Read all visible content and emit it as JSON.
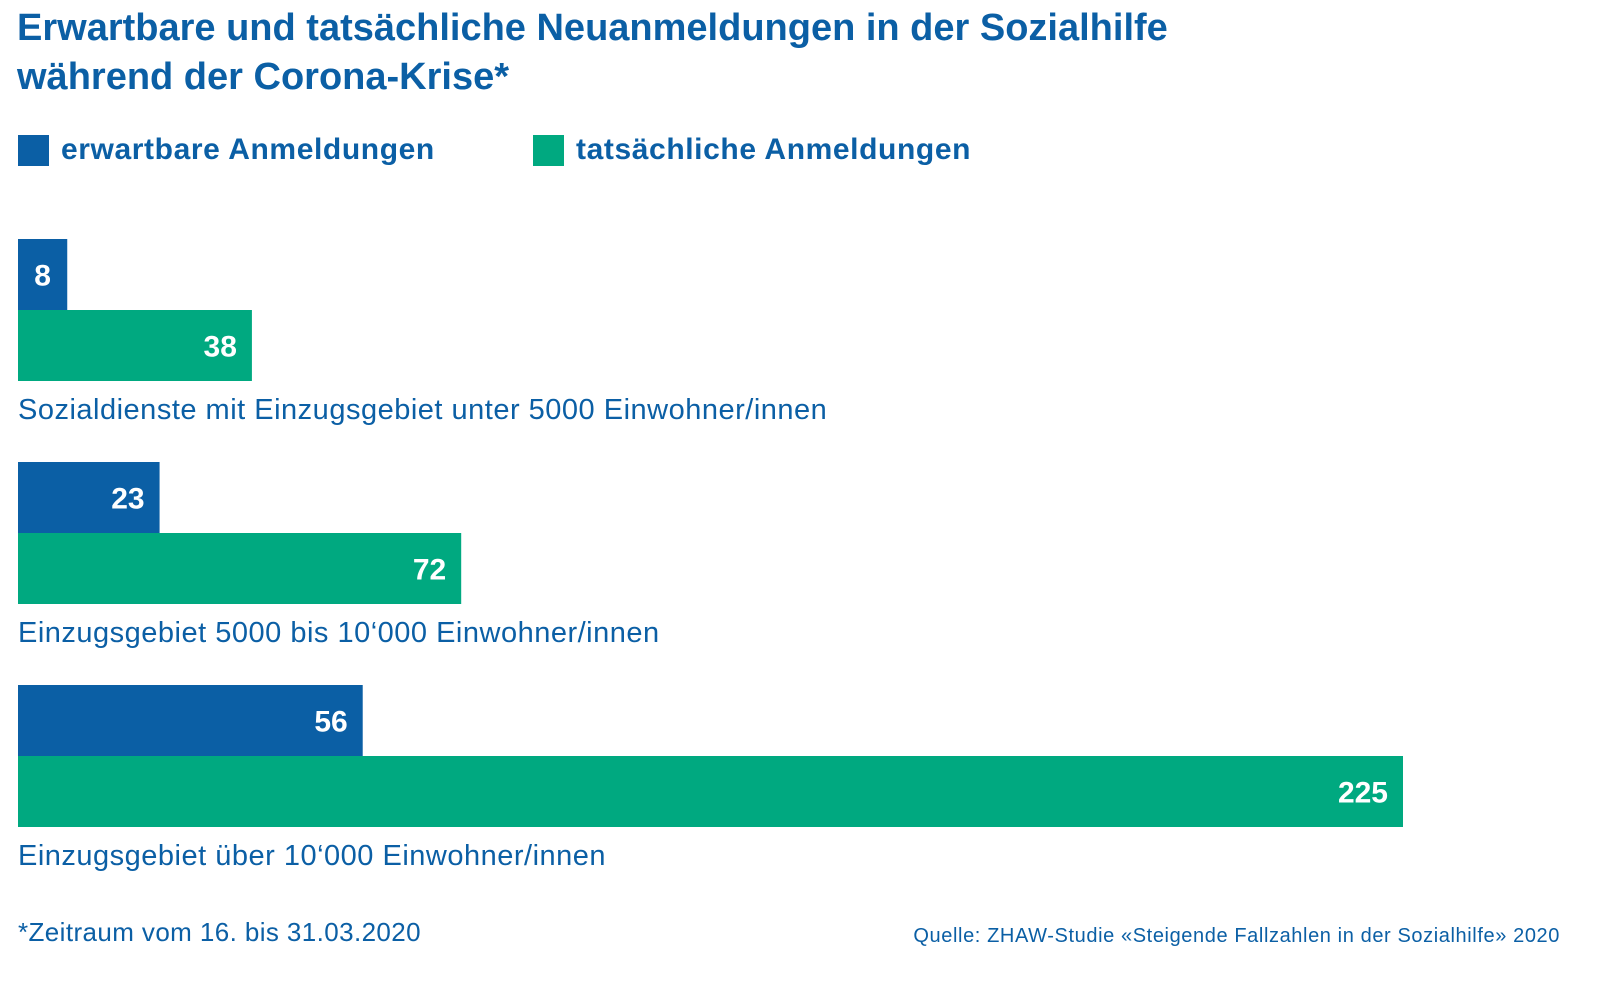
{
  "colors": {
    "text": "#0b5fa5",
    "expected": "#0b5fa5",
    "actual": "#00a980",
    "value_label": "#ffffff"
  },
  "footnote": "*Zeitraum vom 16. bis 31.03.2020",
  "source": "Quelle:  ZHAW-Studie «Steigende Fallzahlen in der Sozialhilfe» 2020",
  "chart_data": {
    "type": "bar",
    "orientation": "horizontal",
    "title_lines": [
      "Erwartbare und tatsächliche Neuanmeldungen in der Sozialhilfe",
      "während der Corona-Krise*"
    ],
    "categories": [
      "Sozialdienste mit Einzugsgebiet unter 5000 Einwohner/innen",
      "Einzugsgebiet 5000 bis 10‘000 Einwohner/innen",
      "Einzugsgebiet über 10‘000 Einwohner/innen"
    ],
    "series": [
      {
        "name": "erwartbare Anmeldungen",
        "values": [
          8,
          23,
          56
        ]
      },
      {
        "name": "tatsächliche Anmeldungen",
        "values": [
          38,
          72,
          225
        ]
      }
    ],
    "xlim": [
      0,
      225
    ],
    "grid": false,
    "legend_position": "top-left"
  }
}
